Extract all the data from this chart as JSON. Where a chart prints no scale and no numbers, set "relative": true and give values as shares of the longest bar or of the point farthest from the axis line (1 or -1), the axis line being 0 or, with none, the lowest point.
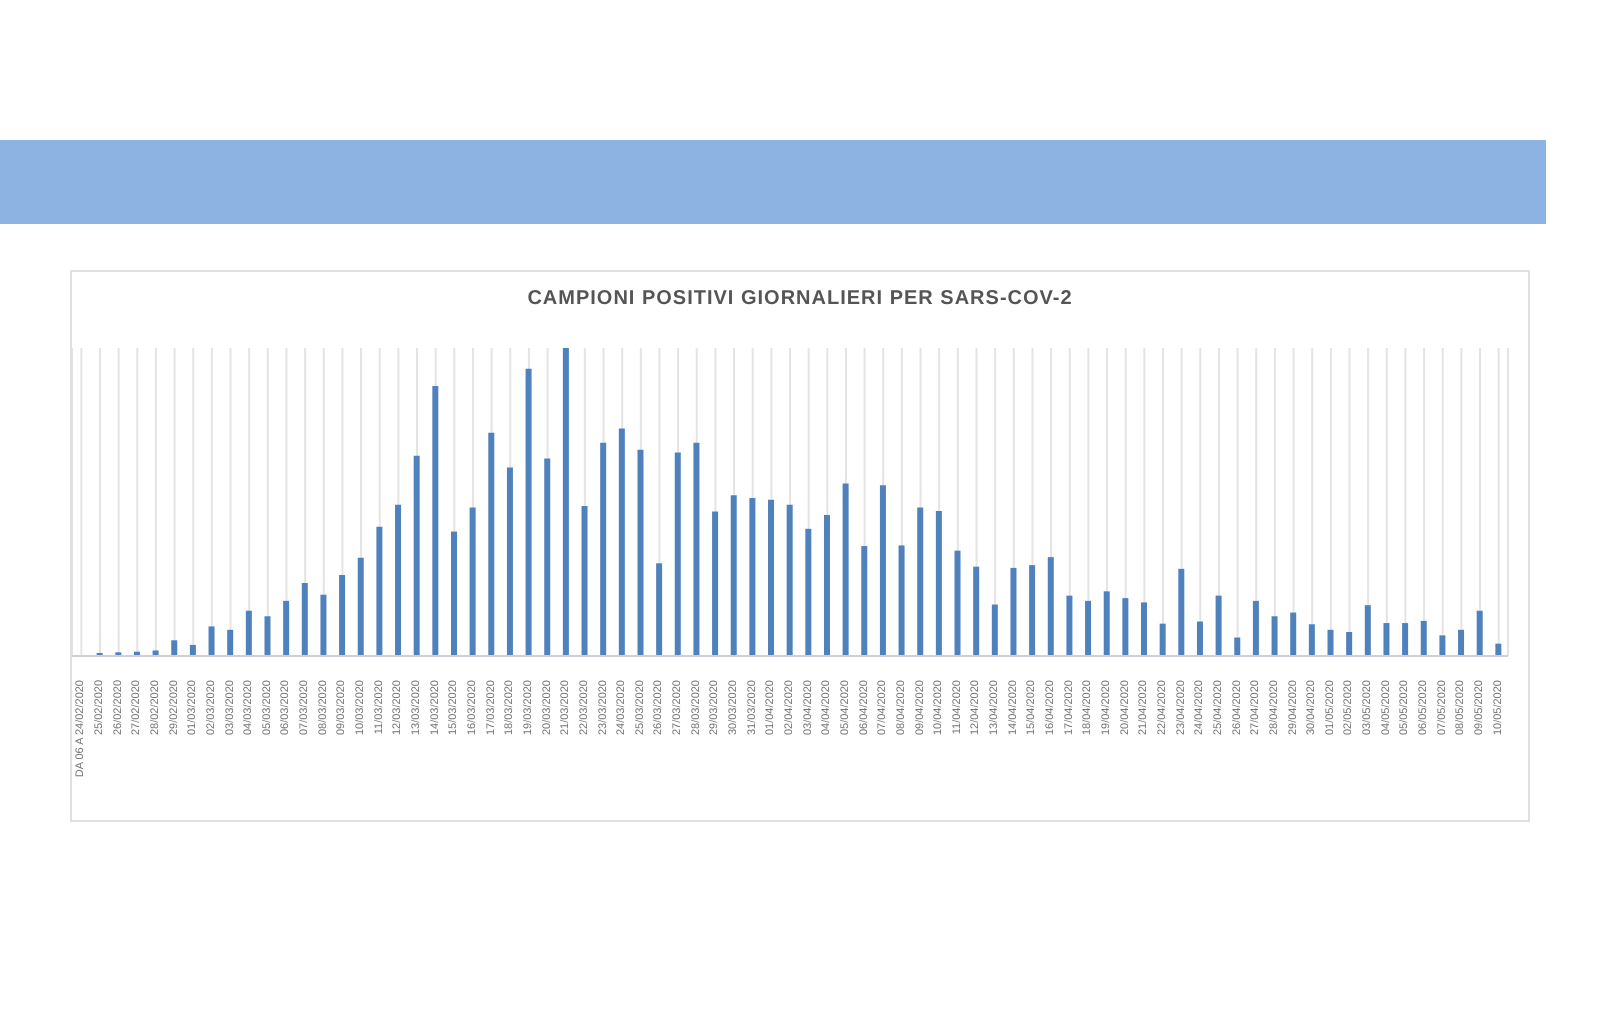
{
  "chart_data": {
    "type": "bar",
    "title": "CAMPIONI POSITIVI GIORNALIERI PER SARS-COV-2",
    "relative": true,
    "grid": "x",
    "color": "#4f81bd",
    "categories": [
      "DA 06 A 24/02/2020",
      "25/02/2020",
      "26/02/2020",
      "27/02/2020",
      "28/02/2020",
      "29/02/2020",
      "01/03/2020",
      "02/03/2020",
      "03/03/2020",
      "04/03/2020",
      "05/03/2020",
      "06/03/2020",
      "07/03/2020",
      "08/03/2020",
      "09/03/2020",
      "10/03/2020",
      "11/03/2020",
      "12/03/2020",
      "13/03/2020",
      "14/03/2020",
      "15/03/2020",
      "16/03/2020",
      "17/03/2020",
      "18/03/2020",
      "19/03/2020",
      "20/03/2020",
      "21/03/2020",
      "22/03/2020",
      "23/03/2020",
      "24/03/2020",
      "25/03/2020",
      "26/03/2020",
      "27/03/2020",
      "28/03/2020",
      "29/03/2020",
      "30/03/2020",
      "31/03/2020",
      "01/04/2020",
      "02/04/2020",
      "03/04/2020",
      "04/04/2020",
      "05/04/2020",
      "06/04/2020",
      "07/04/2020",
      "08/04/2020",
      "09/04/2020",
      "10/04/2020",
      "11/04/2020",
      "12/04/2020",
      "13/04/2020",
      "14/04/2020",
      "15/04/2020",
      "16/04/2020",
      "17/04/2020",
      "18/04/2020",
      "19/04/2020",
      "20/04/2020",
      "21/04/2020",
      "22/04/2020",
      "23/04/2020",
      "24/04/2020",
      "25/04/2020",
      "26/04/2020",
      "27/04/2020",
      "28/04/2020",
      "29/04/2020",
      "30/04/2020",
      "01/05/2020",
      "02/05/2020",
      "03/05/2020",
      "04/05/2020",
      "05/05/2020",
      "06/05/2020",
      "07/05/2020",
      "08/05/2020",
      "09/05/2020",
      "10/05/2020"
    ],
    "values": [
      0,
      0.01,
      0.012,
      0.014,
      0.018,
      0.051,
      0.036,
      0.096,
      0.085,
      0.147,
      0.129,
      0.179,
      0.237,
      0.199,
      0.263,
      0.319,
      0.42,
      0.491,
      0.65,
      0.877,
      0.404,
      0.482,
      0.725,
      0.612,
      0.933,
      0.641,
      1,
      0.487,
      0.692,
      0.739,
      0.67,
      0.301,
      0.661,
      0.692,
      0.469,
      0.522,
      0.513,
      0.507,
      0.491,
      0.413,
      0.458,
      0.56,
      0.357,
      0.554,
      0.359,
      0.482,
      0.471,
      0.342,
      0.29,
      0.167,
      0.286,
      0.295,
      0.321,
      0.196,
      0.179,
      0.21,
      0.188,
      0.174,
      0.105,
      0.283,
      0.112,
      0.196,
      0.06,
      0.179,
      0.129,
      0.141,
      0.103,
      0.085,
      0.078,
      0.165,
      0.107,
      0.107,
      0.114,
      0.067,
      0.085,
      0.147,
      0.04
    ]
  }
}
